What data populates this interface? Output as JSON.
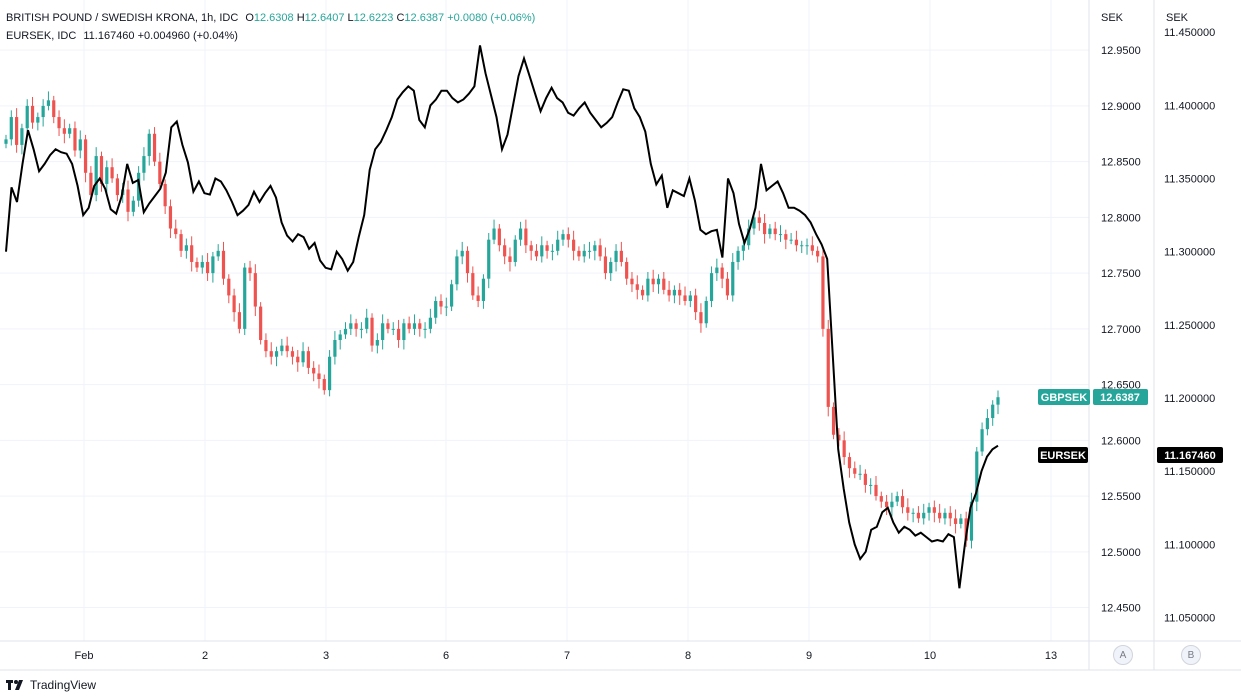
{
  "legend": {
    "line1": {
      "symbol": "BRITISH POUND / SWEDISH KRONA, 1h, IDC",
      "o_label": "O",
      "o": "12.6308",
      "h_label": "H",
      "h": "12.6407",
      "l_label": "L",
      "l": "12.6223",
      "c_label": "C",
      "c": "12.6387",
      "change": "+0.0080 (+0.06%)"
    },
    "line2": {
      "symbol": "EURSEK, IDC",
      "value": "11.167460",
      "change": "+0.004960 (+0.04%)"
    }
  },
  "axes": {
    "left_currency": "SEK",
    "right_currency": "SEK",
    "scale_a": "A",
    "scale_b": "B"
  },
  "tags": {
    "gbpsek_name": "GBPSEK",
    "gbpsek_value": "12.6387",
    "eursek_name": "EURSEK",
    "eursek_value": "11.167460"
  },
  "footer": {
    "brand": "TradingView"
  },
  "colors": {
    "up": "#26a69a",
    "down": "#ef5350",
    "line": "#000000",
    "grid": "#f0f3fa"
  },
  "chart_data": {
    "type": "candlestick+line",
    "x_ticks": [
      "Feb",
      "2",
      "3",
      "6",
      "7",
      "8",
      "9",
      "10",
      "13"
    ],
    "primary": {
      "name": "GBPSEK",
      "ylim": [
        12.42,
        12.995
      ],
      "y_ticks": [
        "12.9500",
        "12.9000",
        "12.8500",
        "12.8000",
        "12.7500",
        "12.7000",
        "12.6500",
        "12.6000",
        "12.5500",
        "12.5000",
        "12.4500"
      ],
      "closes": [
        12.87,
        12.89,
        12.865,
        12.88,
        12.9,
        12.885,
        12.89,
        12.9,
        12.905,
        12.89,
        12.88,
        12.875,
        12.88,
        12.86,
        12.87,
        12.84,
        12.82,
        12.855,
        12.83,
        12.845,
        12.835,
        12.82,
        12.825,
        12.805,
        12.815,
        12.84,
        12.855,
        12.875,
        12.85,
        12.83,
        12.81,
        12.79,
        12.785,
        12.77,
        12.775,
        12.76,
        12.755,
        12.76,
        12.75,
        12.765,
        12.77,
        12.745,
        12.73,
        12.715,
        12.7,
        12.755,
        12.75,
        12.72,
        12.69,
        12.68,
        12.675,
        12.68,
        12.685,
        12.68,
        12.675,
        12.67,
        12.68,
        12.665,
        12.66,
        12.655,
        12.645,
        12.675,
        12.69,
        12.695,
        12.7,
        12.705,
        12.7,
        12.7,
        12.71,
        12.685,
        12.69,
        12.705,
        12.7,
        12.7,
        12.69,
        12.705,
        12.7,
        12.705,
        12.7,
        12.7,
        12.71,
        12.725,
        12.72,
        12.72,
        12.74,
        12.765,
        12.77,
        12.75,
        12.73,
        12.725,
        12.745,
        12.78,
        12.79,
        12.775,
        12.765,
        12.76,
        12.78,
        12.79,
        12.775,
        12.77,
        12.765,
        12.775,
        12.77,
        12.77,
        12.78,
        12.785,
        12.78,
        12.77,
        12.765,
        12.77,
        12.77,
        12.775,
        12.765,
        12.75,
        12.76,
        12.77,
        12.76,
        12.745,
        12.74,
        12.735,
        12.73,
        12.745,
        12.74,
        12.745,
        12.735,
        12.73,
        12.735,
        12.73,
        12.725,
        12.73,
        12.715,
        12.705,
        12.725,
        12.75,
        12.755,
        12.745,
        12.73,
        12.76,
        12.77,
        12.775,
        12.79,
        12.8,
        12.795,
        12.785,
        12.79,
        12.785,
        12.785,
        12.78,
        12.78,
        12.775,
        12.775,
        12.775,
        12.77,
        12.765,
        12.7,
        12.63,
        12.605,
        12.6,
        12.585,
        12.575,
        12.57,
        12.57,
        12.56,
        12.56,
        12.55,
        12.545,
        12.54,
        12.545,
        12.55,
        12.54,
        12.535,
        12.535,
        12.53,
        12.535,
        12.54,
        12.535,
        12.53,
        12.535,
        12.53,
        12.525,
        12.53,
        12.51,
        12.545,
        12.59,
        12.61,
        12.62,
        12.632,
        12.6387
      ]
    },
    "secondary": {
      "name": "EURSEK",
      "ylim": [
        11.034,
        11.472
      ],
      "y_ticks": [
        "11.450000",
        "11.400000",
        "11.350000",
        "11.300000",
        "11.250000",
        "11.200000",
        "11.150000",
        "11.100000",
        "11.050000"
      ],
      "values": [
        11.3,
        11.344,
        11.334,
        11.36,
        11.383,
        11.37,
        11.355,
        11.36,
        11.366,
        11.37,
        11.368,
        11.367,
        11.36,
        11.345,
        11.325,
        11.33,
        11.345,
        11.35,
        11.343,
        11.329,
        11.326,
        11.338,
        11.36,
        11.347,
        11.349,
        11.327,
        11.333,
        11.338,
        11.343,
        11.354,
        11.385,
        11.389,
        11.373,
        11.361,
        11.341,
        11.348,
        11.34,
        11.339,
        11.35,
        11.348,
        11.342,
        11.334,
        11.325,
        11.328,
        11.332,
        11.341,
        11.334,
        11.34,
        11.345,
        11.337,
        11.32,
        11.311,
        11.307,
        11.312,
        11.31,
        11.302,
        11.306,
        11.294,
        11.289,
        11.288,
        11.3,
        11.295,
        11.287,
        11.293,
        11.31,
        11.325,
        11.356,
        11.37,
        11.375,
        11.383,
        11.392,
        11.404,
        11.409,
        11.413,
        11.41,
        11.39,
        11.385,
        11.4,
        11.404,
        11.41,
        11.41,
        11.405,
        11.402,
        11.404,
        11.408,
        11.413,
        11.441,
        11.422,
        11.407,
        11.392,
        11.37,
        11.38,
        11.4,
        11.42,
        11.432,
        11.42,
        11.408,
        11.396,
        11.405,
        11.412,
        11.405,
        11.402,
        11.395,
        11.393,
        11.398,
        11.402,
        11.395,
        11.39,
        11.385,
        11.388,
        11.392,
        11.402,
        11.411,
        11.41,
        11.398,
        11.392,
        11.382,
        11.36,
        11.346,
        11.352,
        11.33,
        11.342,
        11.34,
        11.338,
        11.35,
        11.335,
        11.315,
        11.312,
        11.314,
        11.315,
        11.296,
        11.35,
        11.34,
        11.319,
        11.306,
        11.316,
        11.33,
        11.36,
        11.342,
        11.345,
        11.348,
        11.34,
        11.33,
        11.33,
        11.328,
        11.325,
        11.32,
        11.312,
        11.305,
        11.295,
        11.23,
        11.165,
        11.138,
        11.115,
        11.1,
        11.09,
        11.095,
        11.11,
        11.112,
        11.122,
        11.125,
        11.115,
        11.108,
        11.112,
        11.11,
        11.106,
        11.108,
        11.105,
        11.102,
        11.103,
        11.102,
        11.107,
        11.105,
        11.07,
        11.1,
        11.125,
        11.135,
        11.15,
        11.16,
        11.165,
        11.16746
      ]
    }
  }
}
